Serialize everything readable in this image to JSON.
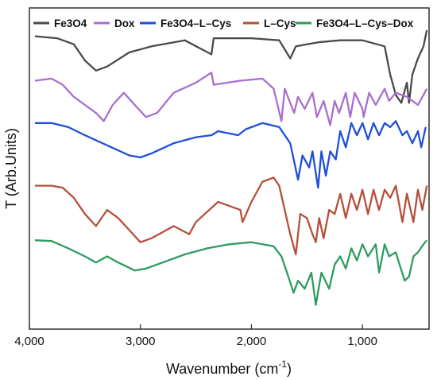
{
  "chart_data": {
    "type": "line",
    "title": "",
    "xlabel": "Wavenumber (cm",
    "xlabel_sup": "-1",
    "xlabel_end": ")",
    "ylabel": "T (Arb.Units)",
    "xlim": [
      4000,
      400
    ],
    "x_reversed": true,
    "x_ticks": [
      4000,
      3000,
      2000,
      1000
    ],
    "x_tick_labels": [
      "4,000",
      "3,000",
      "2,000",
      "1,000"
    ],
    "y_ticks_shown": false,
    "grid": false,
    "legend_position": "top",
    "series": [
      {
        "name": "Fe3O4",
        "color": "#4a4a4a",
        "offset": 5.0,
        "points": [
          [
            3950,
            0.05
          ],
          [
            3750,
            0.0
          ],
          [
            3600,
            -0.15
          ],
          [
            3500,
            -0.55
          ],
          [
            3400,
            -0.8
          ],
          [
            3300,
            -0.7
          ],
          [
            3100,
            -0.35
          ],
          [
            2900,
            -0.2
          ],
          [
            2600,
            -0.05
          ],
          [
            2360,
            -0.4
          ],
          [
            2340,
            0.0
          ],
          [
            2000,
            0.0
          ],
          [
            1750,
            -0.05
          ],
          [
            1650,
            -0.5
          ],
          [
            1600,
            -0.2
          ],
          [
            1400,
            -0.1
          ],
          [
            1200,
            -0.05
          ],
          [
            1000,
            -0.05
          ],
          [
            800,
            -0.2
          ],
          [
            750,
            -0.9
          ],
          [
            700,
            -1.4
          ],
          [
            650,
            -1.6
          ],
          [
            600,
            -1.1
          ],
          [
            580,
            -1.6
          ],
          [
            550,
            -0.9
          ],
          [
            500,
            -0.5
          ],
          [
            450,
            -0.2
          ],
          [
            420,
            0.2
          ]
        ]
      },
      {
        "name": "Dox",
        "color": "#a86fce",
        "offset": 3.95,
        "points": [
          [
            3950,
            0.0
          ],
          [
            3800,
            0.05
          ],
          [
            3700,
            -0.1
          ],
          [
            3600,
            -0.4
          ],
          [
            3500,
            -0.6
          ],
          [
            3400,
            -0.8
          ],
          [
            3330,
            -1.0
          ],
          [
            3250,
            -0.6
          ],
          [
            3150,
            -0.3
          ],
          [
            3050,
            -0.6
          ],
          [
            2950,
            -0.9
          ],
          [
            2850,
            -0.8
          ],
          [
            2700,
            -0.3
          ],
          [
            2500,
            -0.05
          ],
          [
            2360,
            0.2
          ],
          [
            2340,
            -0.1
          ],
          [
            2100,
            0.0
          ],
          [
            1900,
            0.05
          ],
          [
            1800,
            -0.2
          ],
          [
            1730,
            -1.0
          ],
          [
            1700,
            -0.2
          ],
          [
            1615,
            -0.8
          ],
          [
            1580,
            -0.4
          ],
          [
            1520,
            -0.7
          ],
          [
            1450,
            -0.3
          ],
          [
            1410,
            -0.9
          ],
          [
            1350,
            -0.5
          ],
          [
            1290,
            -1.1
          ],
          [
            1250,
            -0.5
          ],
          [
            1210,
            -0.8
          ],
          [
            1150,
            -0.3
          ],
          [
            1110,
            -0.9
          ],
          [
            1070,
            -0.3
          ],
          [
            1000,
            -0.7
          ],
          [
            990,
            -0.9
          ],
          [
            940,
            -0.3
          ],
          [
            880,
            -0.6
          ],
          [
            800,
            -0.2
          ],
          [
            760,
            -0.5
          ],
          [
            700,
            -0.3
          ],
          [
            600,
            -0.4
          ],
          [
            500,
            -0.6
          ],
          [
            420,
            -0.2
          ]
        ]
      },
      {
        "name": "Fe3O4–L–Cys",
        "color": "#1f4ed8",
        "offset": 2.9,
        "points": [
          [
            3950,
            0.0
          ],
          [
            3800,
            0.0
          ],
          [
            3650,
            -0.1
          ],
          [
            3500,
            -0.3
          ],
          [
            3300,
            -0.55
          ],
          [
            3100,
            -0.8
          ],
          [
            3000,
            -0.85
          ],
          [
            2900,
            -0.75
          ],
          [
            2700,
            -0.5
          ],
          [
            2500,
            -0.35
          ],
          [
            2360,
            -0.3
          ],
          [
            2300,
            -0.2
          ],
          [
            2120,
            -0.3
          ],
          [
            2050,
            -0.15
          ],
          [
            1900,
            0.0
          ],
          [
            1750,
            -0.1
          ],
          [
            1650,
            -0.5
          ],
          [
            1580,
            -1.4
          ],
          [
            1540,
            -0.8
          ],
          [
            1480,
            -1.1
          ],
          [
            1450,
            -0.7
          ],
          [
            1400,
            -1.6
          ],
          [
            1370,
            -0.7
          ],
          [
            1330,
            -1.3
          ],
          [
            1290,
            -0.7
          ],
          [
            1240,
            -0.9
          ],
          [
            1200,
            -0.2
          ],
          [
            1150,
            -0.6
          ],
          [
            1100,
            0.0
          ],
          [
            1050,
            -0.3
          ],
          [
            1000,
            0.0
          ],
          [
            950,
            -0.4
          ],
          [
            900,
            0.0
          ],
          [
            850,
            -0.3
          ],
          [
            800,
            0.0
          ],
          [
            750,
            -0.1
          ],
          [
            700,
            0.05
          ],
          [
            640,
            -0.3
          ],
          [
            600,
            -0.2
          ],
          [
            550,
            -0.5
          ],
          [
            500,
            -0.2
          ],
          [
            470,
            -0.6
          ],
          [
            430,
            -0.1
          ]
        ]
      },
      {
        "name": "L–Cys",
        "color": "#b5503a",
        "offset": 1.35,
        "points": [
          [
            3950,
            0.0
          ],
          [
            3800,
            0.0
          ],
          [
            3700,
            -0.05
          ],
          [
            3600,
            -0.3
          ],
          [
            3500,
            -0.7
          ],
          [
            3400,
            -1.0
          ],
          [
            3300,
            -0.6
          ],
          [
            3200,
            -0.8
          ],
          [
            3100,
            -1.1
          ],
          [
            3000,
            -1.4
          ],
          [
            2900,
            -1.3
          ],
          [
            2700,
            -1.0
          ],
          [
            2560,
            -1.2
          ],
          [
            2500,
            -0.9
          ],
          [
            2300,
            -0.4
          ],
          [
            2100,
            -0.6
          ],
          [
            2080,
            -0.9
          ],
          [
            2000,
            -0.4
          ],
          [
            1900,
            0.1
          ],
          [
            1800,
            0.2
          ],
          [
            1750,
            0.0
          ],
          [
            1650,
            -1.2
          ],
          [
            1600,
            -1.7
          ],
          [
            1560,
            -0.7
          ],
          [
            1500,
            -0.8
          ],
          [
            1450,
            -1.2
          ],
          [
            1420,
            -1.4
          ],
          [
            1390,
            -0.8
          ],
          [
            1350,
            -1.3
          ],
          [
            1300,
            -0.6
          ],
          [
            1250,
            -0.7
          ],
          [
            1200,
            -0.2
          ],
          [
            1150,
            -0.8
          ],
          [
            1100,
            -0.2
          ],
          [
            1050,
            -0.6
          ],
          [
            1000,
            -0.1
          ],
          [
            950,
            -0.7
          ],
          [
            900,
            -0.1
          ],
          [
            850,
            -0.6
          ],
          [
            800,
            -0.1
          ],
          [
            750,
            -0.3
          ],
          [
            700,
            0.0
          ],
          [
            640,
            -0.9
          ],
          [
            600,
            -0.2
          ],
          [
            540,
            -0.9
          ],
          [
            500,
            -0.1
          ],
          [
            460,
            -0.6
          ],
          [
            420,
            0.0
          ]
        ]
      },
      {
        "name": "Fe3O4–L–Cys–Dox",
        "color": "#2e9c5f",
        "offset": 0.0,
        "points": [
          [
            3950,
            0.0
          ],
          [
            3800,
            -0.02
          ],
          [
            3650,
            -0.2
          ],
          [
            3500,
            -0.4
          ],
          [
            3400,
            -0.55
          ],
          [
            3300,
            -0.4
          ],
          [
            3200,
            -0.55
          ],
          [
            3050,
            -0.75
          ],
          [
            2950,
            -0.7
          ],
          [
            2800,
            -0.55
          ],
          [
            2600,
            -0.35
          ],
          [
            2400,
            -0.2
          ],
          [
            2200,
            -0.1
          ],
          [
            2000,
            -0.05
          ],
          [
            1800,
            -0.15
          ],
          [
            1730,
            -0.4
          ],
          [
            1680,
            -0.8
          ],
          [
            1620,
            -1.3
          ],
          [
            1580,
            -1.0
          ],
          [
            1520,
            -1.2
          ],
          [
            1460,
            -0.8
          ],
          [
            1420,
            -1.6
          ],
          [
            1370,
            -0.8
          ],
          [
            1300,
            -1.2
          ],
          [
            1250,
            -0.6
          ],
          [
            1200,
            -0.4
          ],
          [
            1150,
            -0.7
          ],
          [
            1100,
            -0.2
          ],
          [
            1050,
            -0.5
          ],
          [
            1000,
            -0.1
          ],
          [
            950,
            -0.4
          ],
          [
            880,
            -0.1
          ],
          [
            850,
            -0.8
          ],
          [
            800,
            -0.1
          ],
          [
            760,
            -0.4
          ],
          [
            700,
            -0.3
          ],
          [
            620,
            -1.0
          ],
          [
            580,
            -0.9
          ],
          [
            540,
            -0.4
          ],
          [
            500,
            -0.3
          ],
          [
            450,
            -0.1
          ],
          [
            420,
            0.0
          ]
        ]
      }
    ]
  }
}
